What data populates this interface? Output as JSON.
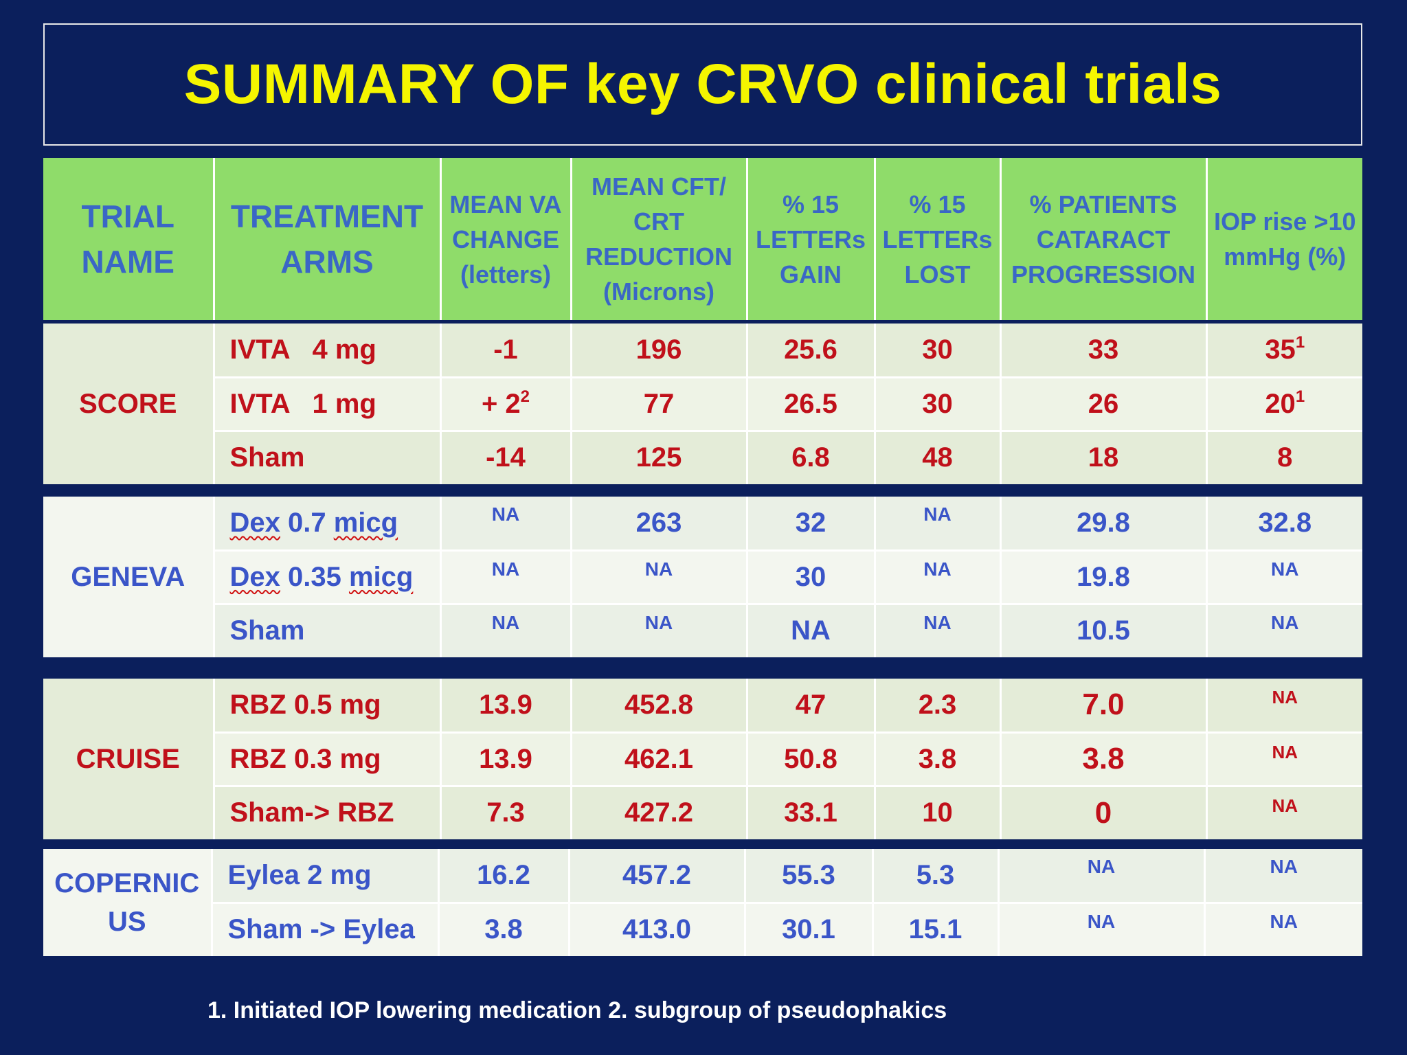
{
  "title": "SUMMARY OF key CRVO clinical trials",
  "headers": {
    "trial_name": "TRIAL NAME",
    "treatment_arms": "TREATMENT ARMS",
    "mean_va": "MEAN VA CHANGE (letters)",
    "mean_cft": "MEAN CFT/ CRT REDUCTION (Microns)",
    "gain": "% 15 LETTERs GAIN",
    "lost": "% 15 LETTERs LOST",
    "cataract": "% PATIENTS CATARACT PROGRESSION",
    "iop": "IOP rise >10 mmHg (%)"
  },
  "trials": [
    {
      "name": "SCORE",
      "rows": [
        {
          "arm": "IVTA   4 mg",
          "va": "-1",
          "va_sup": "",
          "cft": "196",
          "gain": "25.6",
          "lost": "30",
          "cataract": "33",
          "iop": "35",
          "iop_sup": "1"
        },
        {
          "arm": "IVTA   1 mg",
          "va": "+ 2",
          "va_sup": "2",
          "cft": "77",
          "gain": "26.5",
          "lost": "30",
          "cataract": "26",
          "iop": "20",
          "iop_sup": "1"
        },
        {
          "arm": "Sham",
          "va": "-14",
          "va_sup": "",
          "cft": "125",
          "gain": "6.8",
          "lost": "48",
          "cataract": "18",
          "iop": "8",
          "iop_sup": ""
        }
      ]
    },
    {
      "name": "GENEVA",
      "rows": [
        {
          "arm_a": "Dex",
          "arm_b": " 0.7 ",
          "arm_c": "micg",
          "va": "NA",
          "cft": "263",
          "gain": "32",
          "lost": "NA",
          "cataract": "29.8",
          "iop": "32.8"
        },
        {
          "arm_a": "Dex",
          "arm_b": " 0.35 ",
          "arm_c": "micg",
          "va": "NA",
          "cft": "NA",
          "gain": "30",
          "lost": "NA",
          "cataract": "19.8",
          "iop": "NA"
        },
        {
          "arm": "Sham",
          "va": "NA",
          "cft": "NA",
          "gain": "NA",
          "lost": "NA",
          "cataract": "10.5",
          "iop": "NA"
        }
      ]
    },
    {
      "name": "CRUISE",
      "rows": [
        {
          "arm": "RBZ 0.5 mg",
          "va": "13.9",
          "cft": "452.8",
          "gain": "47",
          "lost": "2.3",
          "cataract": "7.0",
          "iop": "NA"
        },
        {
          "arm": "RBZ 0.3 mg",
          "va": "13.9",
          "cft": "462.1",
          "gain": "50.8",
          "lost": "3.8",
          "cataract": "3.8",
          "iop": "NA"
        },
        {
          "arm": "Sham-> RBZ",
          "va": "7.3",
          "cft": "427.2",
          "gain": "33.1",
          "lost": "10",
          "cataract": "0",
          "iop": "NA"
        }
      ]
    },
    {
      "name_line1": "COPERNIC",
      "name_line2": "US",
      "rows": [
        {
          "arm": "Eylea 2 mg",
          "va": "16.2",
          "cft": "457.2",
          "gain": "55.3",
          "lost": "5.3",
          "cataract": "NA",
          "iop": "NA"
        },
        {
          "arm": "Sham -> Eylea",
          "va": "3.8",
          "cft": "413.0",
          "gain": "30.1",
          "lost": "15.1",
          "cataract": "NA",
          "iop": "NA"
        }
      ]
    }
  ],
  "footnote": "1. Initiated IOP lowering medication  2. subgroup of pseudophakics",
  "colors": {
    "background": "#0b1f5c",
    "title": "#f5f500",
    "header_bg": "#8fdc6a",
    "header_text": "#3a67c6",
    "red_text": "#c0101a",
    "blue_text": "#3a55c8"
  }
}
